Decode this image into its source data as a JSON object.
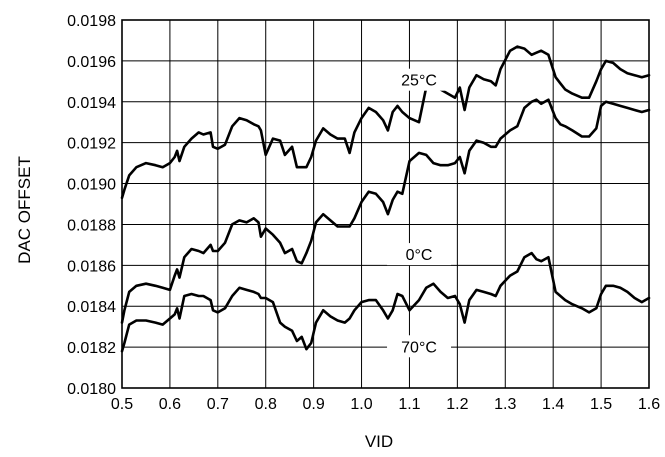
{
  "chart_data": {
    "type": "line",
    "title": "",
    "xlabel": "VID",
    "ylabel": "DAC OFFSET",
    "xlim": [
      0.5,
      1.6
    ],
    "ylim": [
      0.018,
      0.0198
    ],
    "grid": true,
    "x_ticks": [
      "0.5",
      "0.6",
      "0.7",
      "0.8",
      "0.9",
      "1.0",
      "1.1",
      "1.2",
      "1.3",
      "1.4",
      "1.5",
      "1.6"
    ],
    "y_ticks": [
      "0.0180",
      "0.0182",
      "0.0184",
      "0.0186",
      "0.0188",
      "0.0190",
      "0.0192",
      "0.0194",
      "0.0196",
      "0.0198"
    ],
    "colors": {
      "line": "#000000",
      "grid": "#000000",
      "background": "#ffffff"
    },
    "series": [
      {
        "name": "25°C",
        "x": [
          0.5,
          0.505,
          0.515,
          0.53,
          0.55,
          0.57,
          0.585,
          0.6,
          0.61,
          0.615,
          0.62,
          0.63,
          0.645,
          0.66,
          0.67,
          0.685,
          0.69,
          0.7,
          0.715,
          0.73,
          0.745,
          0.76,
          0.775,
          0.785,
          0.79,
          0.8,
          0.815,
          0.83,
          0.84,
          0.855,
          0.865,
          0.875,
          0.885,
          0.895,
          0.905,
          0.92,
          0.935,
          0.95,
          0.965,
          0.975,
          0.985,
          1.0,
          1.015,
          1.03,
          1.045,
          1.055,
          1.065,
          1.075,
          1.085,
          1.1,
          1.12,
          1.135,
          1.15,
          1.165,
          1.18,
          1.195,
          1.205,
          1.215,
          1.225,
          1.24,
          1.255,
          1.27,
          1.28,
          1.29,
          1.31,
          1.325,
          1.34,
          1.355,
          1.365,
          1.375,
          1.39,
          1.405,
          1.415,
          1.425,
          1.44,
          1.46,
          1.475,
          1.49,
          1.5,
          1.51,
          1.525,
          1.54,
          1.555,
          1.57,
          1.585,
          1.6
        ],
        "y": [
          0.01893,
          0.01897,
          0.01904,
          0.01908,
          0.0191,
          0.01909,
          0.01908,
          0.0191,
          0.01913,
          0.01916,
          0.01911,
          0.01918,
          0.01922,
          0.01925,
          0.01924,
          0.01925,
          0.01918,
          0.01917,
          0.01919,
          0.01928,
          0.01932,
          0.01931,
          0.01929,
          0.01928,
          0.01926,
          0.01914,
          0.01922,
          0.01921,
          0.01914,
          0.01918,
          0.01908,
          0.01908,
          0.01908,
          0.01913,
          0.01921,
          0.01927,
          0.01924,
          0.01922,
          0.01922,
          0.01915,
          0.01925,
          0.01932,
          0.01937,
          0.01935,
          0.01931,
          0.01926,
          0.01935,
          0.01938,
          0.01935,
          0.01932,
          0.0193,
          0.01947,
          0.01948,
          0.01946,
          0.01944,
          0.01942,
          0.01947,
          0.01936,
          0.01947,
          0.01953,
          0.01951,
          0.0195,
          0.01948,
          0.01956,
          0.01965,
          0.01967,
          0.01966,
          0.01963,
          0.01964,
          0.01965,
          0.01963,
          0.01952,
          0.01949,
          0.01946,
          0.01944,
          0.01942,
          0.01942,
          0.0195,
          0.01956,
          0.0196,
          0.01959,
          0.01956,
          0.01954,
          0.01953,
          0.01952,
          0.01953
        ]
      },
      {
        "name": "0°C",
        "x": [
          0.5,
          0.505,
          0.515,
          0.53,
          0.55,
          0.57,
          0.585,
          0.6,
          0.61,
          0.615,
          0.62,
          0.63,
          0.645,
          0.66,
          0.67,
          0.685,
          0.69,
          0.7,
          0.715,
          0.73,
          0.745,
          0.76,
          0.775,
          0.785,
          0.79,
          0.8,
          0.815,
          0.83,
          0.84,
          0.855,
          0.865,
          0.875,
          0.885,
          0.895,
          0.905,
          0.92,
          0.935,
          0.95,
          0.965,
          0.975,
          0.985,
          1.0,
          1.015,
          1.03,
          1.045,
          1.055,
          1.065,
          1.075,
          1.085,
          1.1,
          1.12,
          1.135,
          1.15,
          1.165,
          1.18,
          1.195,
          1.205,
          1.215,
          1.225,
          1.24,
          1.255,
          1.27,
          1.28,
          1.29,
          1.31,
          1.325,
          1.34,
          1.355,
          1.365,
          1.375,
          1.39,
          1.405,
          1.415,
          1.425,
          1.44,
          1.46,
          1.475,
          1.49,
          1.5,
          1.51,
          1.525,
          1.54,
          1.555,
          1.57,
          1.585,
          1.6
        ],
        "y": [
          0.01832,
          0.01838,
          0.01847,
          0.0185,
          0.01851,
          0.0185,
          0.01849,
          0.01848,
          0.01855,
          0.01858,
          0.01854,
          0.01864,
          0.01868,
          0.01867,
          0.01866,
          0.0187,
          0.01867,
          0.01867,
          0.01871,
          0.0188,
          0.01882,
          0.01881,
          0.01883,
          0.01881,
          0.01874,
          0.01878,
          0.01875,
          0.01871,
          0.01866,
          0.01868,
          0.01862,
          0.01861,
          0.01866,
          0.01872,
          0.01881,
          0.01885,
          0.01882,
          0.01879,
          0.01879,
          0.01879,
          0.01883,
          0.01891,
          0.01896,
          0.01895,
          0.01891,
          0.01885,
          0.01892,
          0.01896,
          0.01895,
          0.01911,
          0.01915,
          0.01914,
          0.0191,
          0.01909,
          0.01909,
          0.0191,
          0.01913,
          0.01905,
          0.01916,
          0.01921,
          0.0192,
          0.01918,
          0.01918,
          0.01922,
          0.01926,
          0.01928,
          0.01937,
          0.0194,
          0.01941,
          0.01939,
          0.01941,
          0.01932,
          0.01929,
          0.01928,
          0.01926,
          0.01923,
          0.01923,
          0.01927,
          0.01938,
          0.0194,
          0.01939,
          0.01938,
          0.01937,
          0.01936,
          0.01935,
          0.01936
        ]
      },
      {
        "name": "70°C",
        "x": [
          0.5,
          0.505,
          0.515,
          0.53,
          0.55,
          0.57,
          0.585,
          0.6,
          0.61,
          0.615,
          0.62,
          0.63,
          0.645,
          0.66,
          0.67,
          0.685,
          0.69,
          0.7,
          0.715,
          0.73,
          0.745,
          0.76,
          0.775,
          0.785,
          0.79,
          0.8,
          0.815,
          0.83,
          0.84,
          0.855,
          0.865,
          0.875,
          0.885,
          0.895,
          0.905,
          0.92,
          0.935,
          0.95,
          0.965,
          0.975,
          0.985,
          1.0,
          1.015,
          1.03,
          1.045,
          1.055,
          1.065,
          1.075,
          1.085,
          1.1,
          1.12,
          1.135,
          1.15,
          1.165,
          1.18,
          1.195,
          1.205,
          1.215,
          1.225,
          1.24,
          1.255,
          1.27,
          1.28,
          1.29,
          1.31,
          1.325,
          1.34,
          1.355,
          1.365,
          1.375,
          1.39,
          1.405,
          1.415,
          1.425,
          1.44,
          1.46,
          1.475,
          1.49,
          1.5,
          1.51,
          1.525,
          1.54,
          1.555,
          1.57,
          1.585,
          1.6
        ],
        "y": [
          0.01818,
          0.01822,
          0.01831,
          0.01833,
          0.01833,
          0.01832,
          0.01831,
          0.01834,
          0.01836,
          0.01839,
          0.01834,
          0.01845,
          0.01846,
          0.01845,
          0.01845,
          0.01843,
          0.01838,
          0.01837,
          0.01839,
          0.01845,
          0.01849,
          0.01848,
          0.01847,
          0.01846,
          0.01844,
          0.01844,
          0.01842,
          0.01832,
          0.0183,
          0.01828,
          0.01823,
          0.01825,
          0.01819,
          0.01822,
          0.01832,
          0.01838,
          0.01835,
          0.01833,
          0.01832,
          0.01834,
          0.01838,
          0.01842,
          0.01843,
          0.01843,
          0.01838,
          0.01834,
          0.01838,
          0.01846,
          0.01845,
          0.01838,
          0.01843,
          0.01849,
          0.01851,
          0.01847,
          0.01844,
          0.01845,
          0.01841,
          0.01832,
          0.01843,
          0.01848,
          0.01847,
          0.01846,
          0.01845,
          0.0185,
          0.01855,
          0.01857,
          0.01864,
          0.01866,
          0.01863,
          0.01862,
          0.01864,
          0.01847,
          0.01845,
          0.01843,
          0.01841,
          0.01839,
          0.01837,
          0.01839,
          0.01846,
          0.0185,
          0.0185,
          0.01849,
          0.01847,
          0.01844,
          0.01842,
          0.01844
        ]
      }
    ]
  }
}
